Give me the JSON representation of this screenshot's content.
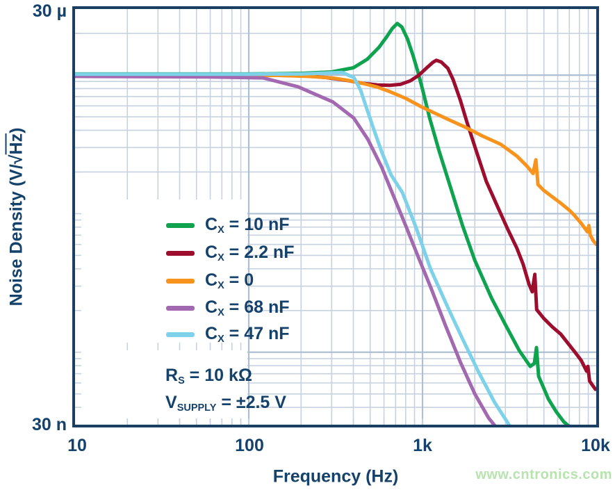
{
  "watermark": "www.cntronics.com",
  "colors": {
    "navy_text": "#15426B",
    "plot_border": "#1B3F63",
    "grid_minor": "#C7D2E0",
    "grid_major": "#AFBFD3",
    "watermark_green": "#B7E3AE"
  },
  "axes": {
    "x": {
      "label": "Frequency (Hz)",
      "scale": "log",
      "min_hz": 10,
      "max_hz": 10000,
      "ticks": [
        "10",
        "100",
        "1k",
        "10k"
      ]
    },
    "y": {
      "label_pre": "Noise Density (V/",
      "label_radical": "√",
      "label_overline": "Hz",
      "label_post": ")",
      "scale": "log",
      "top_label": "30 µ",
      "bottom_label": "30 n",
      "min_uv": 0.03,
      "max_uv": 30
    }
  },
  "legend": [
    {
      "sym": "C",
      "sub": "X",
      "rest": " = 10 nF",
      "color": "#0FA350"
    },
    {
      "sym": "C",
      "sub": "X",
      "rest": " = 2.2 nF",
      "color": "#9D0E2E"
    },
    {
      "sym": "C",
      "sub": "X",
      "rest": " = 0",
      "color": "#F8941D"
    },
    {
      "sym": "C",
      "sub": "X",
      "rest": " = 68 nF",
      "color": "#A369B0"
    },
    {
      "sym": "C",
      "sub": "X",
      "rest": " = 47 nF",
      "color": "#7DD1E8"
    }
  ],
  "conditions": [
    {
      "sym": "R",
      "sub": "S",
      "rest": " = 10 kΩ"
    },
    {
      "sym": "V",
      "sub": "SUPPLY",
      "rest": " = ±2.5 V"
    }
  ],
  "chart_data": {
    "type": "line",
    "title": "",
    "xlabel": "Frequency (Hz)",
    "ylabel": "Noise Density (V/√Hz)",
    "xscale": "log",
    "yscale": "log",
    "xlim_hz": [
      10,
      10000
    ],
    "ylim_v_per_sqrthz": [
      "30n",
      "30µ"
    ],
    "grid": "full log minor+major grid, light blue; legend and condition boxes mask grid at lower left",
    "legend_position": "inside lower-left",
    "series": [
      {
        "name": "CX = 10 nF",
        "color": "#0FA350",
        "points_f_uv": [
          [
            10,
            10.2
          ],
          [
            100,
            10.2
          ],
          [
            150,
            10.25
          ],
          [
            200,
            10.3
          ],
          [
            300,
            10.55
          ],
          [
            400,
            11.3
          ],
          [
            480,
            13
          ],
          [
            560,
            15.8
          ],
          [
            620,
            18.8
          ],
          [
            670,
            21.7
          ],
          [
            715,
            23.6
          ],
          [
            760,
            22.3
          ],
          [
            820,
            18.2
          ],
          [
            880,
            14
          ],
          [
            940,
            10.6
          ],
          [
            1000,
            7.9
          ],
          [
            1100,
            4.9
          ],
          [
            1250,
            2.8
          ],
          [
            1450,
            1.55
          ],
          [
            1700,
            0.82
          ],
          [
            2000,
            0.46
          ],
          [
            2500,
            0.245
          ],
          [
            3000,
            0.158
          ],
          [
            3600,
            0.103
          ],
          [
            4170,
            0.079
          ],
          [
            4400,
            0.083
          ],
          [
            4530,
            0.108
          ],
          [
            4660,
            0.067
          ],
          [
            4900,
            0.058
          ],
          [
            5300,
            0.046
          ],
          [
            5900,
            0.037
          ],
          [
            6500,
            0.0315
          ],
          [
            6950,
            0.0293
          ]
        ]
      },
      {
        "name": "CX = 2.2 nF",
        "color": "#9D0E2E",
        "points_f_uv": [
          [
            10,
            10
          ],
          [
            150,
            9.95
          ],
          [
            220,
            9.85
          ],
          [
            280,
            9.6
          ],
          [
            370,
            9.15
          ],
          [
            450,
            8.75
          ],
          [
            550,
            8.5
          ],
          [
            650,
            8.45
          ],
          [
            750,
            8.6
          ],
          [
            850,
            9.1
          ],
          [
            950,
            9.95
          ],
          [
            1050,
            11.2
          ],
          [
            1150,
            12.4
          ],
          [
            1200,
            12.8
          ],
          [
            1280,
            12.45
          ],
          [
            1400,
            11.2
          ],
          [
            1500,
            9.3
          ],
          [
            1650,
            6.6
          ],
          [
            1800,
            4.6
          ],
          [
            2000,
            3.05
          ],
          [
            2330,
            1.71
          ],
          [
            2700,
            1.13
          ],
          [
            3100,
            0.77
          ],
          [
            3500,
            0.56
          ],
          [
            3790,
            0.433
          ],
          [
            4100,
            0.31
          ],
          [
            4280,
            0.273
          ],
          [
            4430,
            0.365
          ],
          [
            4540,
            0.203
          ],
          [
            5000,
            0.175
          ],
          [
            5600,
            0.152
          ],
          [
            6250,
            0.135
          ],
          [
            7500,
            0.101
          ],
          [
            8200,
            0.087
          ],
          [
            8800,
            0.073
          ],
          [
            8950,
            0.079
          ],
          [
            9150,
            0.062
          ],
          [
            9500,
            0.058
          ],
          [
            9900,
            0.054
          ]
        ]
      },
      {
        "name": "CX = 0",
        "color": "#F8941D",
        "points_f_uv": [
          [
            10,
            10
          ],
          [
            150,
            9.95
          ],
          [
            220,
            9.8
          ],
          [
            300,
            9.55
          ],
          [
            367,
            9.2
          ],
          [
            450,
            8.75
          ],
          [
            550,
            8.2
          ],
          [
            650,
            7.6
          ],
          [
            800,
            6.8
          ],
          [
            1000,
            5.85
          ],
          [
            1112,
            5.5
          ],
          [
            1400,
            4.8
          ],
          [
            1770,
            4.2
          ],
          [
            2200,
            3.65
          ],
          [
            2820,
            3.17
          ],
          [
            3500,
            2.6
          ],
          [
            4000,
            2.2
          ],
          [
            4330,
            1.95
          ],
          [
            4490,
            2.45
          ],
          [
            4620,
            1.62
          ],
          [
            5000,
            1.47
          ],
          [
            5600,
            1.32
          ],
          [
            6250,
            1.19
          ],
          [
            7000,
            1.06
          ],
          [
            7500,
            0.97
          ],
          [
            8200,
            0.85
          ],
          [
            8900,
            0.74
          ],
          [
            9060,
            0.82
          ],
          [
            9250,
            0.7
          ],
          [
            9600,
            0.64
          ],
          [
            10000,
            0.6
          ]
        ]
      },
      {
        "name": "CX = 68 nF",
        "color": "#A369B0",
        "points_f_uv": [
          [
            10,
            9.8
          ],
          [
            60,
            9.7
          ],
          [
            121,
            9.55
          ],
          [
            192,
            8.25
          ],
          [
            305,
            6.4
          ],
          [
            402,
            4.9
          ],
          [
            484,
            3.45
          ],
          [
            582,
            2.17
          ],
          [
            667,
            1.43
          ],
          [
            800,
            0.82
          ],
          [
            950,
            0.48
          ],
          [
            1120,
            0.29
          ],
          [
            1350,
            0.158
          ],
          [
            1650,
            0.085
          ],
          [
            2000,
            0.05
          ],
          [
            2400,
            0.0335
          ],
          [
            2620,
            0.0293
          ]
        ]
      },
      {
        "name": "CX = 47 nF",
        "color": "#7DD1E8",
        "points_f_uv": [
          [
            10,
            10.15
          ],
          [
            100,
            10.15
          ],
          [
            200,
            10.2
          ],
          [
            300,
            10.4
          ],
          [
            345,
            10.45
          ],
          [
            403,
            9.6
          ],
          [
            441,
            7.75
          ],
          [
            484,
            5.45
          ],
          [
            530,
            3.9
          ],
          [
            582,
            2.8
          ],
          [
            660,
            1.9
          ],
          [
            766,
            1.42
          ],
          [
            920,
            0.79
          ],
          [
            1112,
            0.4
          ],
          [
            1400,
            0.21
          ],
          [
            1700,
            0.125
          ],
          [
            2100,
            0.072
          ],
          [
            2600,
            0.0435
          ],
          [
            3180,
            0.0293
          ]
        ]
      }
    ]
  }
}
